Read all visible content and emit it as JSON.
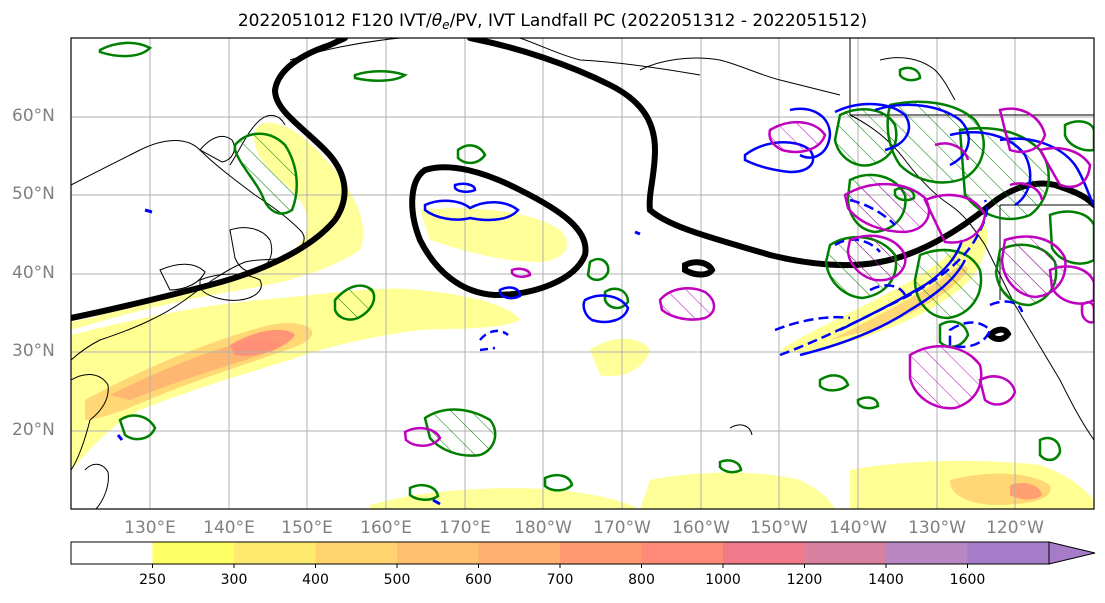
{
  "title": {
    "prefix": "2022051012 F120 IVT/",
    "theta": "θ",
    "sub": "e",
    "suffix": "/PV, IVT Landfall PC (2022051312 - 2022051512)"
  },
  "map": {
    "lat_labels": [
      "60°N",
      "50°N",
      "40°N",
      "30°N",
      "20°N"
    ],
    "lon_labels": [
      "130°E",
      "140°E",
      "150°E",
      "160°E",
      "170°E",
      "180°W",
      "170°W",
      "160°W",
      "150°W",
      "140°W",
      "130°W",
      "120°W"
    ],
    "colors": {
      "land_outline": "#000000",
      "pv_contour": "#000000",
      "positive_theta_contour": "#008000",
      "negative_ivt_contour": "#0000ff",
      "pc_contour": "#bf00bf",
      "grid": "#b0b0b0",
      "frame": "#000000"
    }
  },
  "colorbar": {
    "ticks": [
      "250",
      "300",
      "400",
      "500",
      "600",
      "700",
      "800",
      "1000",
      "1200",
      "1400",
      "1600"
    ],
    "colors": [
      "#ffffff",
      "#ffff66",
      "#ffea70",
      "#ffd36e",
      "#ffc070",
      "#ffb070",
      "#ff9a70",
      "#ff8a78",
      "#f07a8a",
      "#d880a0",
      "#b886c0",
      "#a67cc8"
    ]
  }
}
